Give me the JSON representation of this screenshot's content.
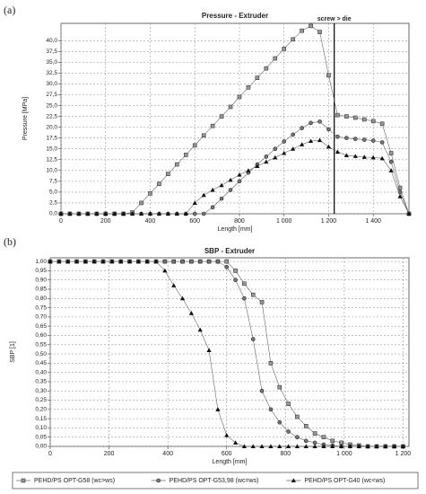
{
  "chart_data": [
    {
      "type": "line",
      "label": "(a)",
      "title": "Pressure - Extruder",
      "xlabel": "Length [mm]",
      "ylabel": "Pressure [MPa]",
      "annotation": "screw > die",
      "vline": 1225,
      "grid": true,
      "legend": "bottom",
      "x": [
        0,
        40,
        80,
        120,
        160,
        200,
        240,
        280,
        320,
        360,
        400,
        440,
        480,
        520,
        560,
        600,
        640,
        680,
        720,
        760,
        800,
        840,
        880,
        920,
        960,
        1000,
        1040,
        1080,
        1120,
        1160,
        1200,
        1240,
        1280,
        1320,
        1360,
        1400,
        1440,
        1480,
        1520,
        1560
      ],
      "xlim": [
        0,
        1560
      ],
      "xticks": [
        0,
        200,
        400,
        600,
        800,
        {
          "value": 1000,
          "label": "1 000"
        },
        {
          "value": 1200,
          "label": "1 200"
        },
        {
          "value": 1400,
          "label": "1 400"
        }
      ],
      "ylim": [
        0,
        44
      ],
      "yticks": [
        {
          "value": 0,
          "label": "0,0"
        },
        {
          "value": 2.5,
          "label": "2,5"
        },
        {
          "value": 5,
          "label": "5,0"
        },
        {
          "value": 7.5,
          "label": "7,5"
        },
        {
          "value": 10,
          "label": "10,0"
        },
        {
          "value": 12.5,
          "label": "12,5"
        },
        {
          "value": 15,
          "label": "15,0"
        },
        {
          "value": 17.5,
          "label": "17,5"
        },
        {
          "value": 20,
          "label": "20,0"
        },
        {
          "value": 22.5,
          "label": "22,5"
        },
        {
          "value": 25,
          "label": "25,0"
        },
        {
          "value": 27.5,
          "label": "27,5"
        },
        {
          "value": 30,
          "label": "30,0"
        },
        {
          "value": 32.5,
          "label": "32,5"
        },
        {
          "value": 35,
          "label": "35,0"
        },
        {
          "value": 37.5,
          "label": "37,5"
        },
        {
          "value": 40,
          "label": "40,0"
        }
      ],
      "series": [
        {
          "name": "PEHD/PS OPT-G58 (wc>ws)",
          "color": "#666666",
          "marker": "square",
          "values": [
            0,
            0,
            0,
            0,
            0,
            0,
            0,
            0,
            0.3,
            2.5,
            4.7,
            6.9,
            9.2,
            11.4,
            13.6,
            15.8,
            18.1,
            20.3,
            22.5,
            24.7,
            27,
            29.2,
            31.4,
            33.6,
            35.9,
            38.1,
            40.3,
            42.3,
            43.4,
            42,
            32,
            22.8,
            22.5,
            22.2,
            21.8,
            21.4,
            20.8,
            14,
            6,
            0
          ]
        },
        {
          "name": "PEHD/PS OPT-G53,98 (wc=ws)",
          "color": "#555555",
          "marker": "circle",
          "values": [
            0,
            0,
            0,
            0,
            0,
            0,
            0,
            0,
            0,
            0,
            0,
            0,
            0,
            0,
            0,
            0,
            0,
            1.5,
            3.5,
            5.5,
            7.5,
            9.5,
            11.4,
            13.2,
            15,
            16.7,
            18.3,
            19.8,
            21,
            21.3,
            19.5,
            17.8,
            17.5,
            17.3,
            17.1,
            16.9,
            16.5,
            12,
            5,
            0
          ]
        },
        {
          "name": "PEHD/PS OPT-G40 (wc<ws)",
          "color": "#111111",
          "marker": "triangle",
          "values": [
            0,
            0,
            0,
            0,
            0,
            0,
            0,
            0,
            0,
            0,
            0,
            0,
            0,
            0,
            0,
            2.5,
            4.3,
            5.5,
            6.6,
            7.8,
            9,
            10,
            11,
            12,
            13,
            14,
            15,
            16,
            16.8,
            17,
            15.5,
            14.3,
            13.5,
            13.3,
            13.1,
            13,
            12.8,
            10,
            4,
            0
          ]
        }
      ]
    },
    {
      "type": "line",
      "label": "(b)",
      "title": "SBP - Extruder",
      "xlabel": "Length [mm]",
      "ylabel": "SBP [1]",
      "grid": true,
      "x": [
        0,
        30,
        60,
        90,
        120,
        150,
        180,
        210,
        240,
        270,
        300,
        330,
        360,
        390,
        420,
        450,
        480,
        510,
        540,
        570,
        600,
        630,
        660,
        690,
        720,
        750,
        780,
        810,
        840,
        870,
        900,
        930,
        960,
        990,
        1020,
        1050,
        1080,
        1110,
        1140,
        1170,
        1200
      ],
      "xlim": [
        0,
        1220
      ],
      "xticks": [
        0,
        200,
        400,
        600,
        800,
        {
          "value": 1000,
          "label": "1 000"
        },
        {
          "value": 1200,
          "label": "1 200"
        }
      ],
      "ylim": [
        0,
        1.02
      ],
      "yticks": [
        {
          "value": 0,
          "label": "0,00"
        },
        {
          "value": 0.05,
          "label": "0,05"
        },
        {
          "value": 0.1,
          "label": "0,10"
        },
        {
          "value": 0.15,
          "label": "0,15"
        },
        {
          "value": 0.2,
          "label": "0,20"
        },
        {
          "value": 0.25,
          "label": "0,25"
        },
        {
          "value": 0.3,
          "label": "0,30"
        },
        {
          "value": 0.35,
          "label": "0,35"
        },
        {
          "value": 0.4,
          "label": "0,40"
        },
        {
          "value": 0.45,
          "label": "0,45"
        },
        {
          "value": 0.5,
          "label": "0,50"
        },
        {
          "value": 0.55,
          "label": "0,55"
        },
        {
          "value": 0.6,
          "label": "0,60"
        },
        {
          "value": 0.65,
          "label": "0,65"
        },
        {
          "value": 0.7,
          "label": "0,70"
        },
        {
          "value": 0.75,
          "label": "0,75"
        },
        {
          "value": 0.8,
          "label": "0,80"
        },
        {
          "value": 0.85,
          "label": "0,85"
        },
        {
          "value": 0.9,
          "label": "0,90"
        },
        {
          "value": 0.95,
          "label": "0,95"
        },
        {
          "value": 1,
          "label": "1,00"
        }
      ],
      "series": [
        {
          "color": "#666666",
          "marker": "square",
          "values": [
            1,
            1,
            1,
            1,
            1,
            1,
            1,
            1,
            1,
            1,
            1,
            1,
            1,
            1,
            1,
            1,
            1,
            1,
            1,
            1,
            1,
            0.95,
            0.88,
            0.82,
            0.78,
            0.45,
            0.32,
            0.23,
            0.16,
            0.11,
            0.07,
            0.05,
            0.03,
            0.02,
            0.01,
            0.005,
            0,
            0,
            0,
            0,
            0
          ]
        },
        {
          "color": "#555555",
          "marker": "circle",
          "values": [
            1,
            1,
            1,
            1,
            1,
            1,
            1,
            1,
            1,
            1,
            1,
            1,
            1,
            1,
            1,
            1,
            1,
            1,
            1,
            1,
            0.97,
            0.9,
            0.8,
            0.58,
            0.3,
            0.2,
            0.13,
            0.08,
            0.05,
            0.03,
            0.02,
            0.01,
            0.005,
            0,
            0,
            0,
            0,
            0,
            0,
            0,
            0
          ]
        },
        {
          "color": "#111111",
          "marker": "triangle",
          "values": [
            1,
            1,
            1,
            1,
            1,
            1,
            1,
            1,
            1,
            1,
            1,
            1,
            1,
            0.95,
            0.87,
            0.8,
            0.72,
            0.63,
            0.52,
            0.2,
            0.06,
            0.02,
            0,
            0,
            0,
            0,
            0,
            0,
            0,
            0,
            0,
            0,
            0,
            0,
            0,
            0,
            0,
            0,
            0,
            0,
            0
          ]
        }
      ]
    }
  ]
}
